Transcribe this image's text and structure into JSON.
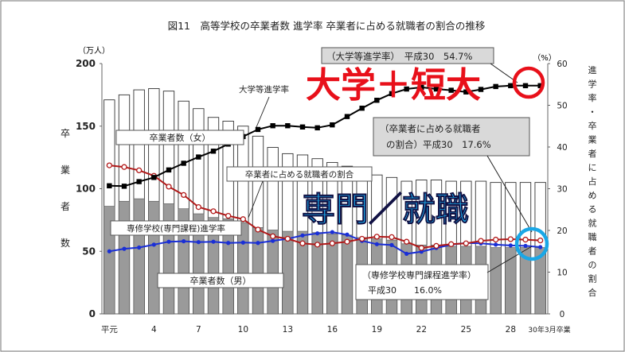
{
  "chart_data": {
    "type": "bar",
    "title": "図11　高等学校の卒業者数 進学率 卒業者に占める就職者の割合の推移",
    "left_axis": {
      "unit": "（万人）",
      "label": "卒業者数",
      "ticks": [
        "0",
        "50",
        "100",
        "150",
        "200"
      ],
      "range": [
        0,
        200
      ]
    },
    "right_axis": {
      "unit": "（%）",
      "label": "進学率・卒業者に占める就職者の割合",
      "ticks": [
        "0",
        "10",
        "20",
        "30",
        "40",
        "50",
        "60"
      ],
      "range": [
        0,
        60
      ]
    },
    "x_ticks": [
      "平元",
      "4",
      "7",
      "10",
      "13",
      "16",
      "19",
      "22",
      "25",
      "28"
    ],
    "x_end_label": "30年3月卒業",
    "years": [
      1,
      2,
      3,
      4,
      5,
      6,
      7,
      8,
      9,
      10,
      11,
      12,
      13,
      14,
      15,
      16,
      17,
      18,
      19,
      20,
      21,
      22,
      23,
      24,
      25,
      26,
      27,
      28,
      29,
      30
    ],
    "series": [
      {
        "name": "卒業者数（男）",
        "type": "bar",
        "values": [
          86,
          90,
          92,
          90,
          88,
          84,
          80,
          77,
          76,
          73,
          69,
          67,
          66,
          66,
          65,
          64,
          63,
          61,
          60,
          59,
          56,
          55,
          55,
          54,
          54,
          54,
          53,
          53,
          53,
          53
        ]
      },
      {
        "name": "卒業者数（女）",
        "type": "bar",
        "values": [
          171,
          175,
          179,
          180,
          178,
          170,
          164,
          157,
          154,
          150,
          142,
          133,
          128,
          127,
          124,
          121,
          118,
          113,
          111,
          109,
          106,
          107,
          107,
          106,
          106,
          106,
          105,
          105,
          105,
          105
        ]
      },
      {
        "name": "大学等進学率",
        "type": "line",
        "axis": "right",
        "values": [
          30.7,
          30.6,
          31.7,
          32.7,
          34.5,
          36.1,
          37.6,
          39.0,
          40.7,
          42.5,
          44.2,
          45.1,
          45.1,
          44.8,
          44.6,
          45.3,
          47.3,
          49.3,
          51.2,
          52.8,
          53.9,
          54.3,
          53.9,
          53.6,
          53.2,
          53.8,
          54.5,
          54.7,
          54.7,
          54.7
        ]
      },
      {
        "name": "卒業者に占める就職者の割合",
        "type": "line",
        "axis": "right",
        "values": [
          35.6,
          35.2,
          34.4,
          33.1,
          30.5,
          28.5,
          25.6,
          24.6,
          23.5,
          22.7,
          20.2,
          18.6,
          18.0,
          16.9,
          16.6,
          16.9,
          17.3,
          18.0,
          18.5,
          18.4,
          17.3,
          15.8,
          16.3,
          16.7,
          16.9,
          17.5,
          17.8,
          17.9,
          17.8,
          17.6
        ]
      },
      {
        "name": "専修学校(専門課程)進学率",
        "type": "line",
        "axis": "right",
        "values": [
          15.0,
          15.6,
          15.9,
          16.6,
          17.3,
          17.4,
          17.2,
          17.3,
          17.0,
          17.1,
          17.0,
          17.5,
          18.0,
          18.8,
          19.3,
          19.6,
          19.0,
          17.5,
          16.7,
          16.5,
          14.4,
          14.9,
          15.8,
          16.6,
          17.0,
          16.9,
          16.6,
          16.4,
          16.3,
          16.0
        ]
      }
    ],
    "annotations": {
      "daigaku_box": "（大学等進学率）　平成30　54.7%",
      "shushoku_box_1": "（卒業者に占める就職者",
      "shushoku_box_2": "の割合）平成30　17.6%",
      "senshu_box_1": "（専修学校専門課程進学率）",
      "senshu_box_2": "平成30　　16.0%",
      "label_women": "卒業者数（女）",
      "label_men": "卒業者数（男）",
      "label_daigaku": "大学等進学率",
      "label_shushoku": "卒業者に占める就職者の割合",
      "label_senshu": "専修学校(専門課程)進学率"
    },
    "overlay": {
      "red_text": "大学＋短大",
      "blue_text": "専門／就職",
      "red_color": "#e8101a",
      "blue_color": "#1aa7e6"
    },
    "colors": {
      "bar_men": "#9a9a9a",
      "bar_women": "#ffffff",
      "daigaku_line": "#000000",
      "shushoku_line": "#b01818",
      "senshu_line": "#1a2fd6"
    },
    "grid": false
  }
}
